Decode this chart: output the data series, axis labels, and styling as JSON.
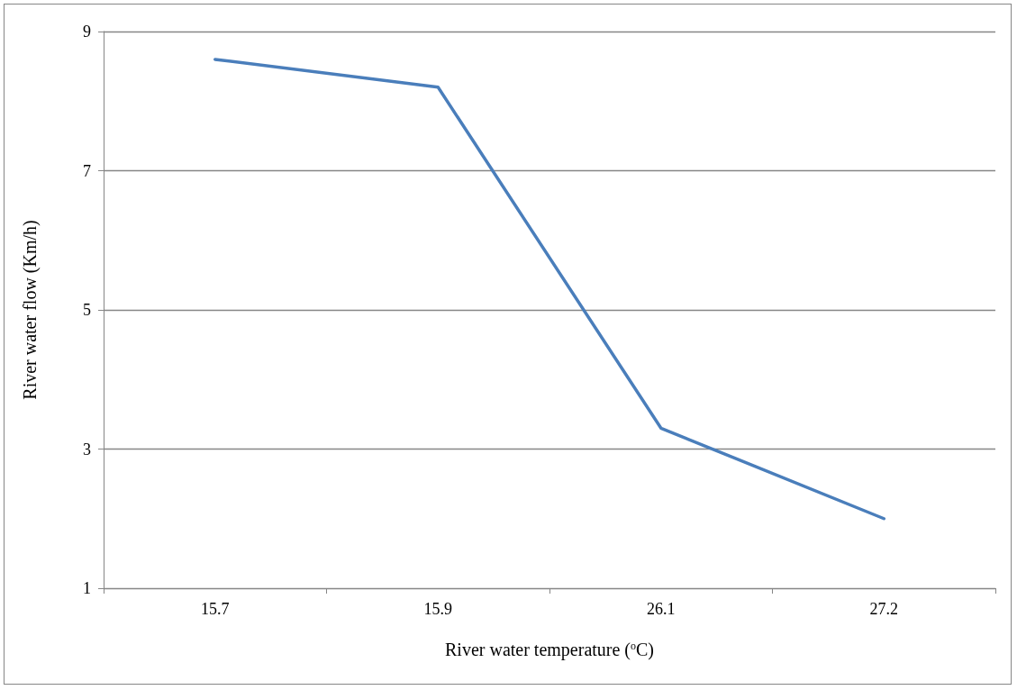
{
  "chart_data": {
    "type": "line",
    "xlabel": "River water temperature ($^{o}$C)",
    "ylabel": "River water flow (Km/h)",
    "categories": [
      "15.7",
      "15.9",
      "26.1",
      "27.2"
    ],
    "series": [
      {
        "color": "#4a7ebb",
        "values": [
          8.6,
          8.2,
          3.3,
          2.0
        ]
      }
    ],
    "ylim": [
      1,
      9
    ],
    "yticks": [
      1,
      3,
      5,
      7,
      9
    ],
    "grid": "y",
    "marker": "none",
    "line_style": "solid"
  }
}
